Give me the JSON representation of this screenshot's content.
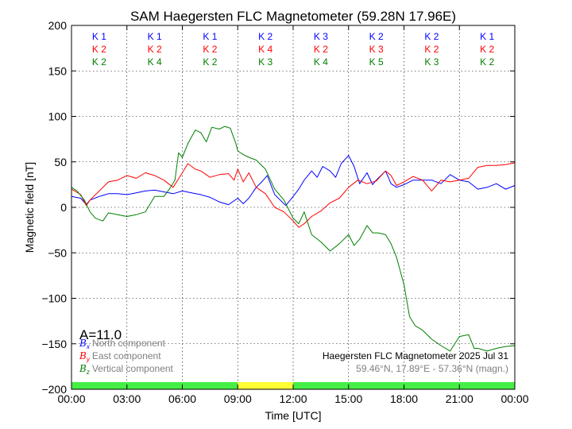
{
  "chart_data": {
    "type": "line",
    "title": "SAM Haegersten FLC Magnetometer (59.28N 17.96E)",
    "xlabel": "Time [UTC]",
    "ylabel": "Magnetic field [nT]",
    "xlim_hours": [
      0,
      24
    ],
    "ylim": [
      -200,
      200
    ],
    "x_tick_labels": [
      "00:00",
      "03:00",
      "06:00",
      "09:00",
      "12:00",
      "15:00",
      "18:00",
      "21:00",
      "00:00"
    ],
    "y_ticks": [
      200,
      150,
      100,
      50,
      0,
      -50,
      -100,
      -150,
      -200
    ],
    "y_tick_labels": [
      "200",
      "150",
      "100",
      "50",
      "0",
      "−50",
      "−100",
      "−150",
      "−200"
    ],
    "grid": true,
    "k_indices": {
      "rows": [
        {
          "color": "#0000ff",
          "values": [
            "K 1",
            "K 1",
            "K 1",
            "K 2",
            "K 3",
            "K 2",
            "K 2",
            "K 1"
          ]
        },
        {
          "color": "#ff0000",
          "values": [
            "K 2",
            "K 2",
            "K 2",
            "K 4",
            "K 2",
            "K 3",
            "K 2",
            "K 2"
          ]
        },
        {
          "color": "#008000",
          "values": [
            "K 2",
            "K 4",
            "K 2",
            "K 3",
            "K 4",
            "K 5",
            "K 3",
            "K 2"
          ]
        }
      ]
    },
    "a_index": "A=11.0",
    "legend": {
      "placement": "lower-left",
      "entries": [
        {
          "symbol": "B",
          "sub": "x",
          "label": "North component",
          "color": "#0000ff"
        },
        {
          "symbol": "B",
          "sub": "y",
          "label": "East component",
          "color": "#ff0000"
        },
        {
          "symbol": "B",
          "sub": "z",
          "label": "Vertical component",
          "color": "#008000"
        }
      ]
    },
    "station_note": {
      "line1": "Haegersten FLC Magnetometer 2025 Jul 31",
      "line2": "59.46°N, 17.89°E - 57.36°N (magn.)"
    },
    "daylight_bar": [
      {
        "from_hour": 0,
        "to_hour": 9,
        "color": "#44ee44"
      },
      {
        "from_hour": 9,
        "to_hour": 12,
        "color": "#ffff33"
      },
      {
        "from_hour": 12,
        "to_hour": 24,
        "color": "#44ee44"
      }
    ],
    "series": [
      {
        "name": "North component",
        "color": "#0000ff",
        "points": [
          [
            0,
            12
          ],
          [
            0.5,
            10
          ],
          [
            0.8,
            3
          ],
          [
            1,
            8
          ],
          [
            1.5,
            12
          ],
          [
            2,
            15
          ],
          [
            2.5,
            15
          ],
          [
            3,
            14
          ],
          [
            3.5,
            16
          ],
          [
            4,
            18
          ],
          [
            4.5,
            19
          ],
          [
            5,
            17
          ],
          [
            5.5,
            15
          ],
          [
            6,
            18
          ],
          [
            6.5,
            16
          ],
          [
            7,
            14
          ],
          [
            7.5,
            11
          ],
          [
            8,
            6
          ],
          [
            8.5,
            3
          ],
          [
            9,
            10
          ],
          [
            9.3,
            4
          ],
          [
            9.6,
            10
          ],
          [
            10,
            22
          ],
          [
            10.3,
            28
          ],
          [
            10.6,
            35
          ],
          [
            11,
            14
          ],
          [
            11.3,
            8
          ],
          [
            11.6,
            2
          ],
          [
            12,
            12
          ],
          [
            12.3,
            20
          ],
          [
            12.6,
            30
          ],
          [
            13,
            40
          ],
          [
            13.3,
            33
          ],
          [
            13.6,
            45
          ],
          [
            14,
            40
          ],
          [
            14.3,
            33
          ],
          [
            14.6,
            48
          ],
          [
            15,
            57
          ],
          [
            15.3,
            45
          ],
          [
            15.6,
            26
          ],
          [
            16,
            38
          ],
          [
            16.3,
            25
          ],
          [
            16.5,
            30
          ],
          [
            17,
            40
          ],
          [
            17.3,
            26
          ],
          [
            17.6,
            22
          ],
          [
            18,
            25
          ],
          [
            18.5,
            30
          ],
          [
            19,
            30
          ],
          [
            19.5,
            30
          ],
          [
            20,
            26
          ],
          [
            20.5,
            36
          ],
          [
            21,
            30
          ],
          [
            21.5,
            28
          ],
          [
            22,
            20
          ],
          [
            22.5,
            22
          ],
          [
            23,
            26
          ],
          [
            23.5,
            20
          ],
          [
            24,
            24
          ]
        ]
      },
      {
        "name": "East component",
        "color": "#ff0000",
        "points": [
          [
            0,
            20
          ],
          [
            0.5,
            14
          ],
          [
            0.8,
            2
          ],
          [
            1,
            8
          ],
          [
            1.5,
            18
          ],
          [
            2,
            28
          ],
          [
            2.5,
            30
          ],
          [
            3,
            35
          ],
          [
            3.5,
            32
          ],
          [
            4,
            38
          ],
          [
            4.5,
            35
          ],
          [
            5,
            30
          ],
          [
            5.5,
            22
          ],
          [
            6,
            38
          ],
          [
            6.3,
            48
          ],
          [
            6.7,
            42
          ],
          [
            7,
            40
          ],
          [
            7.5,
            33
          ],
          [
            8,
            36
          ],
          [
            8.5,
            37
          ],
          [
            8.8,
            30
          ],
          [
            9,
            42
          ],
          [
            9.3,
            28
          ],
          [
            9.6,
            38
          ],
          [
            10,
            22
          ],
          [
            10.5,
            15
          ],
          [
            11,
            0
          ],
          [
            11.5,
            -5
          ],
          [
            12,
            -15
          ],
          [
            12.3,
            -22
          ],
          [
            12.6,
            -18
          ],
          [
            13,
            -10
          ],
          [
            13.5,
            -4
          ],
          [
            14,
            5
          ],
          [
            14.5,
            10
          ],
          [
            15,
            22
          ],
          [
            15.5,
            30
          ],
          [
            16,
            26
          ],
          [
            16.5,
            29
          ],
          [
            17,
            40
          ],
          [
            17.3,
            35
          ],
          [
            17.6,
            24
          ],
          [
            18,
            28
          ],
          [
            18.5,
            34
          ],
          [
            19,
            30
          ],
          [
            19.5,
            18
          ],
          [
            20,
            30
          ],
          [
            20.5,
            28
          ],
          [
            21,
            30
          ],
          [
            21.5,
            32
          ],
          [
            22,
            44
          ],
          [
            22.5,
            46
          ],
          [
            23,
            46
          ],
          [
            23.5,
            47
          ],
          [
            24,
            49
          ]
        ]
      },
      {
        "name": "Vertical component",
        "color": "#008000",
        "points": [
          [
            0,
            22
          ],
          [
            0.3,
            18
          ],
          [
            0.7,
            8
          ],
          [
            1,
            -5
          ],
          [
            1.3,
            -12
          ],
          [
            1.7,
            -15
          ],
          [
            2,
            -6
          ],
          [
            2.5,
            -8
          ],
          [
            3,
            -10
          ],
          [
            3.5,
            -8
          ],
          [
            4,
            -5
          ],
          [
            4.5,
            12
          ],
          [
            5,
            12
          ],
          [
            5.3,
            20
          ],
          [
            5.6,
            30
          ],
          [
            5.8,
            60
          ],
          [
            6,
            55
          ],
          [
            6.3,
            70
          ],
          [
            6.7,
            85
          ],
          [
            7,
            82
          ],
          [
            7.3,
            72
          ],
          [
            7.6,
            88
          ],
          [
            8,
            86
          ],
          [
            8.3,
            89
          ],
          [
            8.6,
            87
          ],
          [
            8.9,
            70
          ],
          [
            9,
            62
          ],
          [
            9.3,
            58
          ],
          [
            9.6,
            55
          ],
          [
            10,
            52
          ],
          [
            10.5,
            42
          ],
          [
            11,
            20
          ],
          [
            11.5,
            8
          ],
          [
            12,
            -12
          ],
          [
            12.3,
            -18
          ],
          [
            12.6,
            -5
          ],
          [
            13,
            -30
          ],
          [
            13.5,
            -38
          ],
          [
            14,
            -48
          ],
          [
            14.5,
            -40
          ],
          [
            15,
            -30
          ],
          [
            15.3,
            -42
          ],
          [
            15.6,
            -35
          ],
          [
            16,
            -20
          ],
          [
            16.3,
            -28
          ],
          [
            16.6,
            -28
          ],
          [
            17,
            -30
          ],
          [
            17.3,
            -40
          ],
          [
            17.6,
            -55
          ],
          [
            18,
            -85
          ],
          [
            18.3,
            -120
          ],
          [
            18.6,
            -130
          ],
          [
            19,
            -135
          ],
          [
            19.5,
            -145
          ],
          [
            20,
            -152
          ],
          [
            20.5,
            -158
          ],
          [
            21,
            -142
          ],
          [
            21.5,
            -140
          ],
          [
            21.8,
            -155
          ],
          [
            22,
            -155
          ],
          [
            22.5,
            -158
          ],
          [
            23,
            -155
          ],
          [
            23.5,
            -153
          ],
          [
            24,
            -152
          ]
        ]
      }
    ]
  }
}
